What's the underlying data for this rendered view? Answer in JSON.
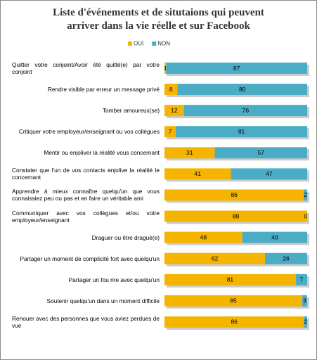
{
  "chart_data": {
    "type": "stacked_barh",
    "title": "Liste d'événements et de situtaions qui peuvent arriver dans la vie réelle et sur Facebook",
    "categories": [
      "Quitter votre conjoint/Avoir été quitté(e) par votre conjoint",
      "Rendre visible par erreur un message privé",
      "Tomber amoureux(se)",
      "Critiquer votre employeur/enseignant ou vos collègues",
      "Mentir ou enjoliver la réalité vous concernant",
      "Constater que l'un de vos contacts enjolive la réalité le concernant",
      "Apprendre à mieux connaître quelqu'un que vous connaissiez peu ou pas et en faire un véritable ami",
      "Communiquer avec vos collègues et/ou votre employeur/enseignant",
      "Draguer ou être dragué(e)",
      "Partager un moment de complicité fort avec quelqu'un",
      "Partager un fou rire avec quelqu'un",
      "Soutenir quelqu'un dans un moment difficile",
      "Renouer avec des personnes que vous aviez perdues de vue"
    ],
    "series": [
      {
        "name": "OUI",
        "color": "#f5b400",
        "values": [
          1,
          8,
          12,
          7,
          31,
          41,
          86,
          88,
          48,
          62,
          81,
          85,
          86
        ]
      },
      {
        "name": "NON",
        "color": "#4bacc6",
        "values": [
          87,
          80,
          76,
          81,
          57,
          47,
          2,
          0,
          40,
          26,
          7,
          3,
          2
        ]
      }
    ],
    "xlim": [
      0,
      88
    ]
  }
}
